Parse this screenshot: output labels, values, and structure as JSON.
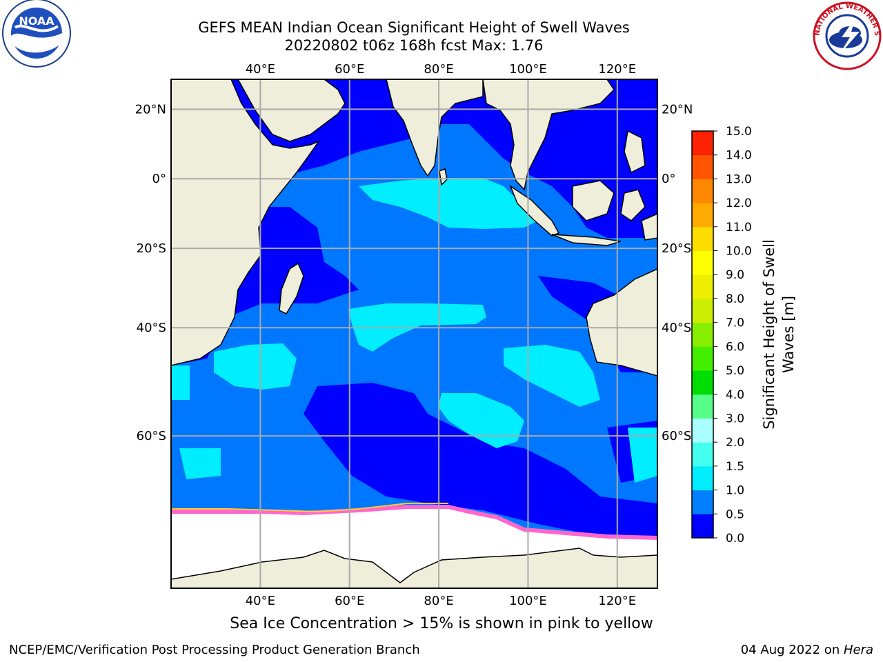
{
  "title": {
    "line1": "GEFS MEAN Indian Ocean Significant Height of Swell Waves",
    "line2": "20220802 t06z 168h fcst   Max: 1.76"
  },
  "map": {
    "lon_ticks": [
      "40°E",
      "60°E",
      "80°E",
      "100°E",
      "120°E"
    ],
    "lat_ticks": [
      "20°N",
      "0°",
      "20°S",
      "40°S",
      "60°S"
    ],
    "lon_values": [
      40,
      60,
      80,
      100,
      120
    ],
    "lat_values": [
      20,
      0,
      -20,
      -40,
      -60
    ],
    "extent": {
      "lon_min": 20,
      "lon_max": 129,
      "lat_min": -76,
      "lat_max": 28
    },
    "colors": {
      "land": "#efeedb",
      "ocean_low": "#0000ff",
      "ocean_mid": "#0077ff",
      "ocean_high": "#00eeff",
      "ice": "#ffffff",
      "ice_edge": "#ff66cc",
      "grid": "#aaaaaa"
    }
  },
  "colorbar": {
    "label_line1": "Significant Height of Swell",
    "label_line2": "Waves [m]",
    "ticks": [
      "0.0",
      "0.5",
      "1.0",
      "1.5",
      "2.0",
      "3.0",
      "4.0",
      "5.0",
      "6.0",
      "7.0",
      "8.0",
      "9.0",
      "10.0",
      "11.0",
      "12.0",
      "13.0",
      "14.0",
      "15.0"
    ],
    "colors": [
      "#0000ff",
      "#0080ff",
      "#00eeff",
      "#44ffee",
      "#aaffff",
      "#55ff88",
      "#00dd00",
      "#44ee00",
      "#88ee00",
      "#ccee00",
      "#eeee00",
      "#ffff00",
      "#ffdd00",
      "#ffaa00",
      "#ff8800",
      "#ff5500",
      "#ff2200",
      "#ff0000"
    ]
  },
  "notes": {
    "ice": "Sea Ice Concentration > 15% is shown in pink to yellow",
    "footer_left": "NCEP/EMC/Verification Post Processing Product Generation Branch",
    "footer_date": "04 Aug 2022 on ",
    "footer_host": "Hera"
  },
  "logos": {
    "noaa_text": "NOAA",
    "nws_text": "NATIONAL WEATHER SERVICE"
  }
}
